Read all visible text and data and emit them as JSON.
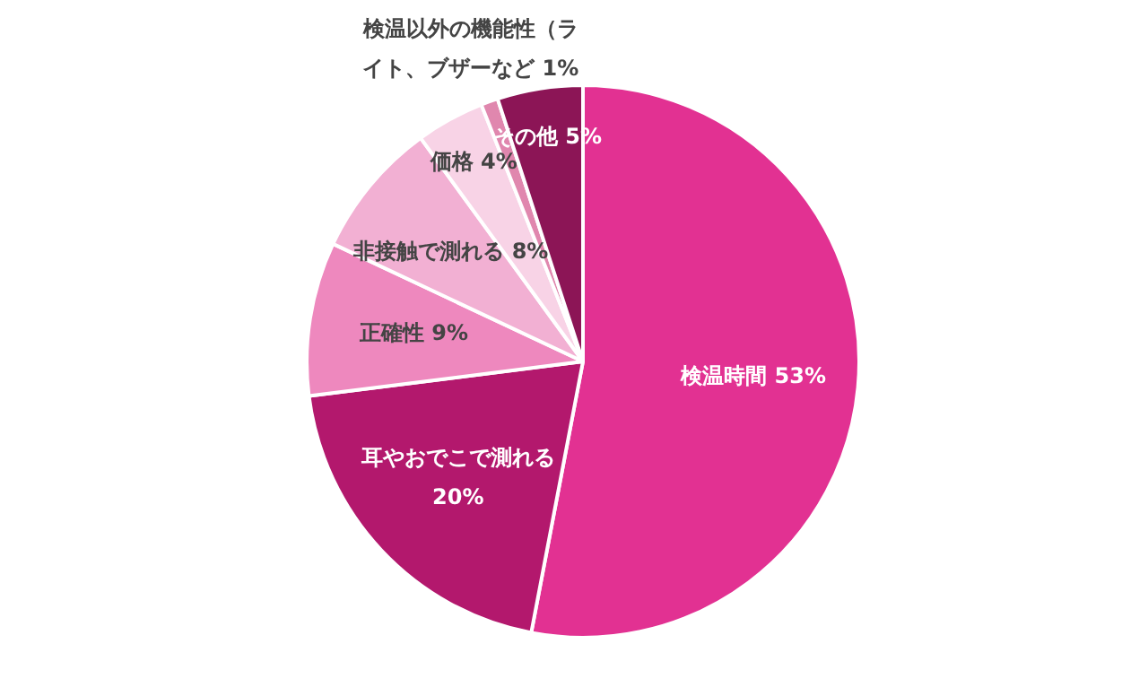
{
  "chart_data": {
    "type": "pie",
    "categories": [
      "検温時間",
      "耳やおでこで測れる",
      "正確性",
      "非接触で測れる",
      "価格",
      "検温以外の機能性（ライト、ブザーなど",
      "その他"
    ],
    "values": [
      53,
      20,
      9,
      8,
      4,
      1,
      5
    ],
    "value_labels": [
      "53%",
      "20%",
      "9%",
      "8%",
      "4%",
      "1%",
      "5%"
    ],
    "colors": [
      "#e23192",
      "#b3186d",
      "#ee88be",
      "#f2b0d3",
      "#f8d3e6",
      "#e087ae",
      "#8c1556"
    ],
    "legend": false
  }
}
